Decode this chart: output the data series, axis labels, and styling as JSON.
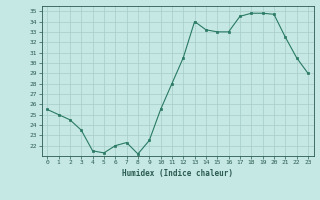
{
  "x": [
    0,
    1,
    2,
    3,
    4,
    5,
    6,
    7,
    8,
    9,
    10,
    11,
    12,
    13,
    14,
    15,
    16,
    17,
    18,
    19,
    20,
    21,
    22,
    23
  ],
  "y": [
    25.5,
    25.0,
    24.5,
    23.5,
    21.5,
    21.3,
    22.0,
    22.3,
    21.2,
    22.5,
    25.5,
    28.0,
    30.5,
    34.0,
    33.2,
    33.0,
    33.0,
    34.5,
    34.8,
    34.8,
    34.7,
    32.5,
    30.5,
    29.0
  ],
  "xlabel": "Humidex (Indice chaleur)",
  "ylim": [
    21.0,
    35.5
  ],
  "xlim": [
    -0.5,
    23.5
  ],
  "yticks": [
    22,
    23,
    24,
    25,
    26,
    27,
    28,
    29,
    30,
    31,
    32,
    33,
    34,
    35
  ],
  "xticks": [
    0,
    1,
    2,
    3,
    4,
    5,
    6,
    7,
    8,
    9,
    10,
    11,
    12,
    13,
    14,
    15,
    16,
    17,
    18,
    19,
    20,
    21,
    22,
    23
  ],
  "line_color": "#2a7a64",
  "marker_color": "#2a7a64",
  "bg_color": "#c5e8e4",
  "grid_color": "#a8cec9",
  "tick_label_color": "#2a5a50",
  "axis_label_color": "#2a5a50"
}
